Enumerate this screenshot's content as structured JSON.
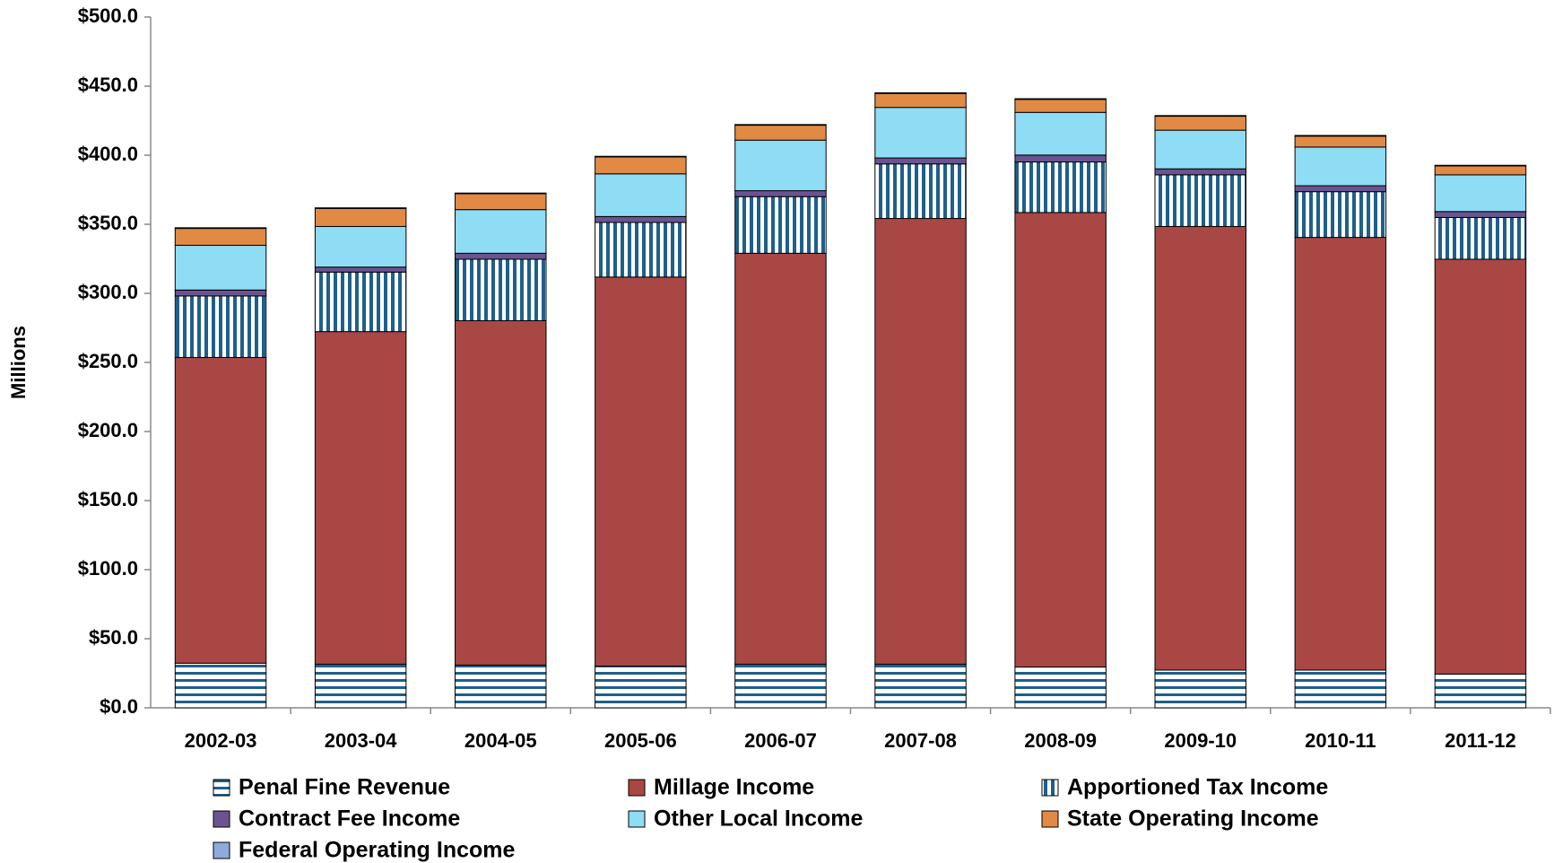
{
  "chart_data": {
    "type": "stacked-bar",
    "ylabel": "Millions",
    "categories": [
      "2002-03",
      "2003-04",
      "2004-05",
      "2005-06",
      "2006-07",
      "2007-08",
      "2008-09",
      "2009-10",
      "2010-11",
      "2011-12"
    ],
    "series": [
      {
        "name": "Penal Fine Revenue",
        "color": "#1f5f8b",
        "pattern": "horizontal-stripes",
        "values": [
          32.3,
          31.6,
          30.9,
          30.2,
          31.6,
          31.6,
          29.5,
          27.3,
          27.3,
          24.4
        ]
      },
      {
        "name": "Millage Income",
        "color": "#a94744",
        "values": [
          221.3,
          240.7,
          249.3,
          281.6,
          297.4,
          322.6,
          329.0,
          321.1,
          313.2,
          300.3
        ]
      },
      {
        "name": "Apportioned Tax Income",
        "color": "#1f5f8b",
        "pattern": "vertical-stripes",
        "values": [
          44.5,
          43.1,
          44.5,
          39.5,
          41.0,
          39.5,
          36.6,
          37.4,
          33.1,
          30.2
        ]
      },
      {
        "name": "Contract Fee Income",
        "color": "#6a5490",
        "values": [
          4.3,
          3.6,
          4.3,
          4.3,
          4.3,
          4.3,
          5.0,
          4.3,
          4.3,
          4.3
        ]
      },
      {
        "name": "Other Local Income",
        "color": "#8fdcf5",
        "values": [
          32.4,
          29.4,
          31.6,
          30.9,
          36.6,
          36.6,
          30.9,
          28.0,
          28.0,
          26.6
        ]
      },
      {
        "name": "State Operating Income",
        "color": "#e08a45",
        "values": [
          12.2,
          13.0,
          11.5,
          12.2,
          10.8,
          10.1,
          9.4,
          10.1,
          7.9,
          6.4
        ]
      },
      {
        "name": "Federal Operating Income",
        "color": "#8faadc",
        "values": [
          0.5,
          0.5,
          0.5,
          0.5,
          0.5,
          0.5,
          0.5,
          0.5,
          0.5,
          0.5
        ]
      }
    ],
    "ylim": [
      0,
      500
    ],
    "yticks": [
      {
        "value": 0,
        "label": "$0.0"
      },
      {
        "value": 50,
        "label": "$50.0"
      },
      {
        "value": 100,
        "label": "$100.0"
      },
      {
        "value": 150,
        "label": "$150.0"
      },
      {
        "value": 200,
        "label": "$200.0"
      },
      {
        "value": 250,
        "label": "$250.0"
      },
      {
        "value": 300,
        "label": "$300.0"
      },
      {
        "value": 350,
        "label": "$350.0"
      },
      {
        "value": 400,
        "label": "$400.0"
      },
      {
        "value": 450,
        "label": "$450.0"
      },
      {
        "value": 500,
        "label": "$500.0"
      }
    ],
    "grid": false,
    "legend": "bottom"
  }
}
